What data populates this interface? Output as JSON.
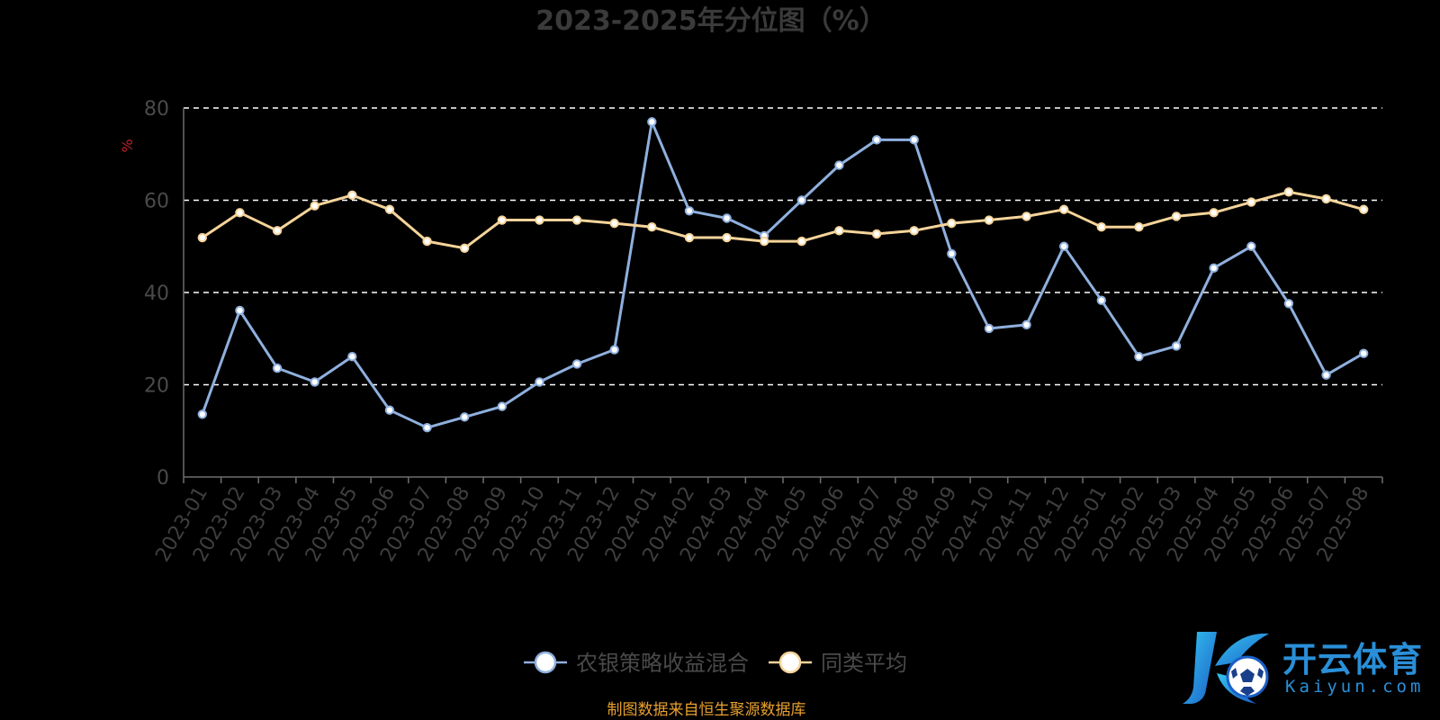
{
  "chart_data": {
    "type": "line",
    "title": "2023-2025年分位图（%）",
    "ylabel": "%",
    "xlabel": "",
    "ylim": [
      0,
      80
    ],
    "yticks": [
      0,
      20,
      40,
      60,
      80
    ],
    "grid": "horizontal dashed",
    "legend_position": "bottom-center",
    "categories": [
      "2023-01",
      "2023-02",
      "2023-03",
      "2023-04",
      "2023-05",
      "2023-06",
      "2023-07",
      "2023-08",
      "2023-09",
      "2023-10",
      "2023-11",
      "2023-12",
      "2024-01",
      "2024-02",
      "2024-03",
      "2024-04",
      "2024-05",
      "2024-06",
      "2024-07",
      "2024-08",
      "2024-09",
      "2024-10",
      "2024-11",
      "2024-12",
      "2025-01",
      "2025-02",
      "2025-03",
      "2025-04",
      "2025-05",
      "2025-06",
      "2025-07",
      "2025-08"
    ],
    "series": [
      {
        "name": "农银策略收益混合",
        "color": "#8fb0de",
        "values": [
          13.6,
          36.1,
          23.6,
          20.6,
          26.1,
          14.5,
          10.7,
          13.0,
          15.3,
          20.6,
          24.5,
          27.6,
          77.0,
          57.7,
          56.1,
          52.3,
          60.0,
          67.6,
          73.1,
          73.1,
          48.4,
          32.2,
          33.0,
          50.0,
          38.3,
          26.1,
          28.4,
          45.3,
          50.0,
          37.6,
          22.1,
          26.8
        ]
      },
      {
        "name": "同类平均",
        "color": "#f5d49a",
        "values": [
          51.9,
          57.3,
          53.4,
          58.8,
          61.1,
          58.0,
          51.1,
          49.6,
          55.7,
          55.7,
          55.7,
          55.0,
          54.2,
          51.9,
          51.9,
          51.1,
          51.1,
          53.4,
          52.7,
          53.4,
          55.0,
          55.7,
          56.5,
          58.0,
          54.2,
          54.2,
          56.5,
          57.3,
          59.6,
          61.8,
          60.3,
          58.0
        ]
      }
    ]
  },
  "source_note": "制图数据来自恒生聚源数据库",
  "colors": {
    "background": "#000000",
    "axis": "#6e6e6e",
    "grid": "#ffffff",
    "ylabel": "#c0202a",
    "source": "#e8a030",
    "logo": "#2a8fd8"
  },
  "watermark": {
    "name_cn": "开云体育",
    "name_en": "Kaiyun.com",
    "icon": "soccer-ball-logo-icon"
  }
}
